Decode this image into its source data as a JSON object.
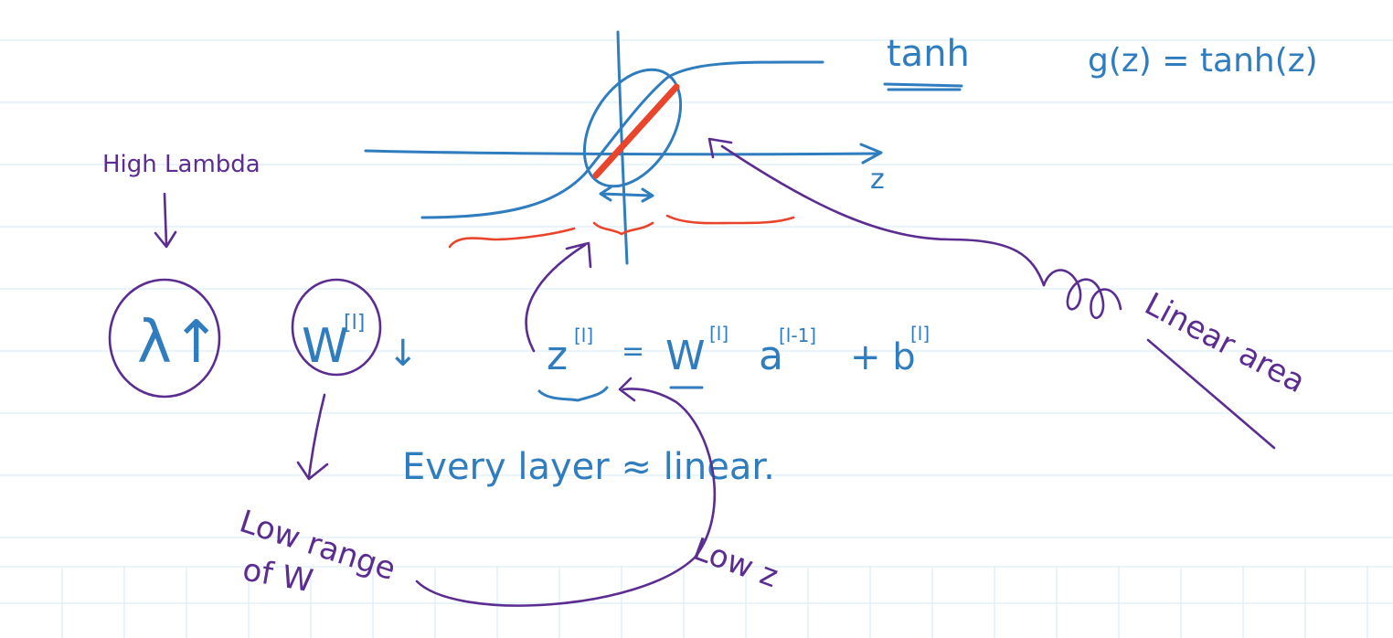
{
  "colors": {
    "blue_ink": "#2f7dbf",
    "purple_ink": "#5b2d91",
    "red_ink": "#e8452c",
    "grid": "#d6ebf7"
  },
  "notes": {
    "tanh_label": "tanh",
    "tanh_formula": "g(z) = tanh(z)",
    "z_axis_label": "z",
    "high_lambda": "High Lambda",
    "lambda_up": "λ↑",
    "w_l": "W",
    "w_superscript": "[l]",
    "w_down_arrow": "↓",
    "z_equation_z": "z",
    "z_equation_sup_l": "[l]",
    "z_equation_eq": "=",
    "z_equation_w": "W",
    "z_equation_sup_w": "[l]",
    "z_equation_a": "a",
    "z_equation_sup_a": "[l-1]",
    "z_equation_plus_b": "+ b",
    "z_equation_sup_b": "[l]",
    "every_layer_linear": "Every layer ≈ linear.",
    "low_range_of_w_line1": "Low range",
    "low_range_of_w_line2": "of W",
    "low_z": "Low z",
    "linear_area": "Linear area"
  }
}
